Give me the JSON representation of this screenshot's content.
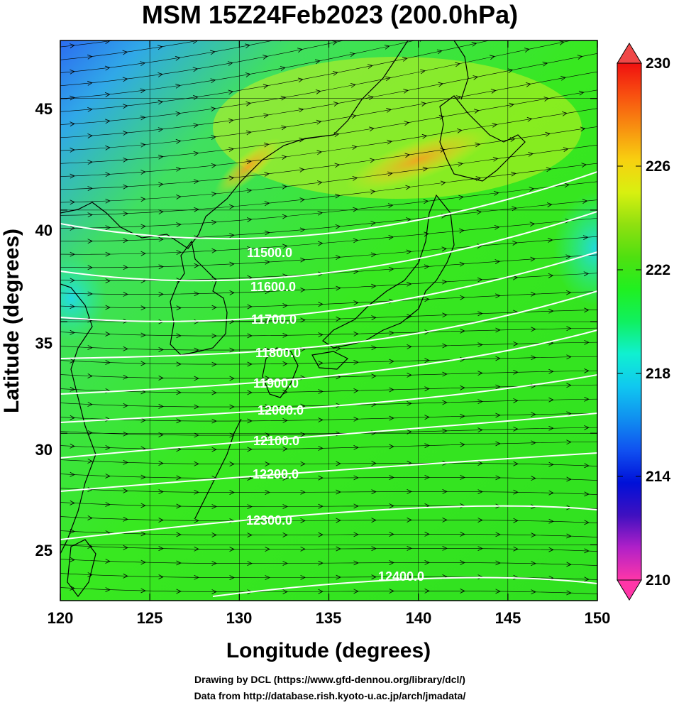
{
  "figure": {
    "title": "MSM 15Z24Feb2023 (200.0hPa)",
    "xlabel": "Longitude (degrees)",
    "ylabel": "Latitude  (degrees)",
    "credit_line1": "Drawing by DCL (https://www.gfd-dennou.org/library/dcl/)",
    "credit_line2": "Data from http://database.rish.kyoto-u.ac.jp/arch/jmadata/"
  },
  "map": {
    "lon_range": [
      120,
      150
    ],
    "lat_range": [
      22.5,
      47.6
    ],
    "x_ticks": [
      "120",
      "125",
      "130",
      "135",
      "140",
      "145",
      "150"
    ],
    "y_ticks": [
      "25",
      "30",
      "35",
      "40",
      "45"
    ],
    "grid": true,
    "shading_field": "temperature (K)",
    "vector_field": "wind (streamline arrows)",
    "contour_field": "geopotential height (m)",
    "contour_color": "#ffffff",
    "coastline_color": "#000000"
  },
  "contours": [
    {
      "label": "11500.0"
    },
    {
      "label": "11600.0"
    },
    {
      "label": "11700.0"
    },
    {
      "label": "11800.0"
    },
    {
      "label": "11900.0"
    },
    {
      "label": "12000.0"
    },
    {
      "label": "12100.0"
    },
    {
      "label": "12200.0"
    },
    {
      "label": "12300.0"
    },
    {
      "label": "12400.0"
    }
  ],
  "colorbar": {
    "min": 210,
    "max": 230,
    "ticks": [
      "230",
      "226",
      "222",
      "218",
      "214",
      "210"
    ],
    "colors": [
      "#ff36a8",
      "#b020c8",
      "#4010c0",
      "#0010d8",
      "#1050f0",
      "#1090f0",
      "#10c8f0",
      "#10f0d0",
      "#10f060",
      "#20f020",
      "#50e010",
      "#90e010",
      "#d8f010",
      "#f8d010",
      "#f89010",
      "#f85010",
      "#f01010"
    ],
    "extend": "both"
  }
}
